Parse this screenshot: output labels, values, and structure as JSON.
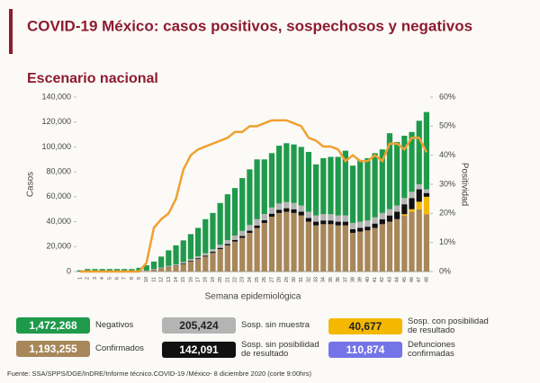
{
  "chart_data": {
    "type": "bar",
    "title": "COVID-19 México: casos positivos, sospechosos y negativos",
    "subtitle": "Escenario nacional",
    "x_label": "Semana epidemiológica",
    "y_label": "Casos",
    "y2_label": "Positividad",
    "source": "Fuente: SSA/SPPS/DGE/InDRE/Informe técnico.COVID-19 /México- 8 diciembre 2020 (corte 9:00hrs)",
    "categories": [
      "1",
      "2",
      "3",
      "4",
      "5",
      "6",
      "7",
      "8",
      "9",
      "10",
      "11",
      "12",
      "13",
      "14",
      "15",
      "16",
      "17",
      "18",
      "19",
      "20",
      "21",
      "22",
      "23",
      "24",
      "25",
      "26",
      "27",
      "28",
      "29",
      "30",
      "31",
      "32",
      "33",
      "34",
      "35",
      "36",
      "37",
      "38",
      "39",
      "40",
      "41",
      "42",
      "43",
      "44",
      "45",
      "46",
      "47",
      "48"
    ],
    "ylim": [
      0,
      140000
    ],
    "yticks": [
      0,
      {
        "value": 20000,
        "label": "20,000"
      },
      {
        "value": 40000,
        "label": "40,000"
      },
      {
        "value": 60000,
        "label": "60,000"
      },
      {
        "value": 80000,
        "label": "80,000"
      },
      {
        "value": 100000,
        "label": "100,000"
      },
      {
        "value": 120000,
        "label": "120,000"
      },
      {
        "value": 140000,
        "label": "140,000"
      }
    ],
    "y2lim": [
      0,
      60
    ],
    "y2ticks": [
      {
        "value": 0,
        "label": "0%"
      },
      {
        "value": 10,
        "label": "10%"
      },
      {
        "value": 20,
        "label": "20%"
      },
      {
        "value": 30,
        "label": "30%"
      },
      {
        "value": 40,
        "label": "40%"
      },
      {
        "value": 50,
        "label": "50%"
      },
      {
        "value": 60,
        "label": "60%"
      }
    ],
    "series": [
      {
        "name": "Confirmados",
        "total": "1,193,255",
        "color": "#a8875a",
        "values": [
          0,
          0,
          0,
          0,
          0,
          0,
          0,
          0,
          200,
          600,
          1500,
          2500,
          3500,
          4500,
          6000,
          8000,
          10000,
          12000,
          15000,
          18000,
          21000,
          24000,
          27000,
          31000,
          35000,
          39000,
          44000,
          47000,
          48000,
          47000,
          45000,
          40000,
          37000,
          38000,
          38000,
          37000,
          37000,
          31000,
          32000,
          33000,
          35000,
          38000,
          40000,
          42000,
          45000,
          48000,
          50000,
          46000
        ]
      },
      {
        "name": "Sosp. con posibilidad de resultado",
        "total": "40,677",
        "color": "#f5b800",
        "values": [
          0,
          0,
          0,
          0,
          0,
          0,
          0,
          0,
          0,
          0,
          0,
          0,
          0,
          0,
          0,
          0,
          0,
          0,
          0,
          0,
          0,
          0,
          0,
          0,
          0,
          0,
          0,
          0,
          0,
          0,
          0,
          0,
          0,
          0,
          0,
          0,
          0,
          0,
          0,
          0,
          0,
          0,
          0,
          0,
          1000,
          2000,
          6000,
          14000
        ]
      },
      {
        "name": "Sosp. sin posibilidad de resultado",
        "total": "142,091",
        "color": "#111111",
        "values": [
          0,
          0,
          0,
          0,
          0,
          0,
          0,
          0,
          0,
          0,
          100,
          200,
          300,
          400,
          500,
          600,
          700,
          800,
          900,
          1000,
          1200,
          1400,
          1600,
          1800,
          2000,
          2200,
          2400,
          2600,
          2800,
          3000,
          3000,
          3000,
          3000,
          3000,
          3000,
          3000,
          3000,
          3000,
          3000,
          3000,
          3500,
          4000,
          5000,
          6000,
          8000,
          9000,
          10000,
          3000
        ]
      },
      {
        "name": "Sosp. sin muestra",
        "total": "205,424",
        "color": "#b4b4b4",
        "values": [
          0,
          0,
          0,
          0,
          0,
          0,
          0,
          0,
          100,
          200,
          300,
          500,
          700,
          900,
          1100,
          1300,
          1500,
          1800,
          2000,
          2500,
          3000,
          3500,
          4000,
          4500,
          5000,
          5000,
          5000,
          5000,
          5000,
          5000,
          5000,
          5000,
          5000,
          5000,
          5000,
          5000,
          5000,
          5000,
          5000,
          5000,
          5000,
          5000,
          5000,
          5000,
          5000,
          5000,
          4000,
          3000
        ]
      },
      {
        "name": "Negativos",
        "total": "1,472,268",
        "color": "#1f9a4b",
        "values": [
          1000,
          2000,
          2000,
          2000,
          2000,
          2000,
          2000,
          2000,
          2700,
          4200,
          6100,
          8800,
          12500,
          15200,
          17400,
          20100,
          22800,
          27400,
          29100,
          33500,
          36800,
          38100,
          42400,
          44700,
          48000,
          43800,
          43600,
          46400,
          47200,
          47000,
          47000,
          48000,
          41000,
          45000,
          46000,
          47000,
          52000,
          46000,
          49000,
          50000,
          51500,
          51000,
          61000,
          51000,
          50000,
          48000,
          51000,
          62000
        ]
      },
      {
        "type": "line",
        "axis": "y2",
        "color": "#f0a030",
        "values": [
          0,
          0,
          0,
          0,
          0,
          0,
          0,
          0,
          0,
          3,
          15,
          18,
          20,
          25,
          35,
          40,
          42,
          43,
          44,
          45,
          46,
          48,
          48,
          50,
          50,
          51,
          52,
          52,
          52,
          51,
          50,
          46,
          45,
          43,
          43,
          42,
          38,
          40,
          38,
          38,
          40,
          38,
          44,
          44,
          42,
          46,
          46,
          41
        ]
      }
    ],
    "extra_legend": [
      {
        "name": "Defunciones confirmadas",
        "total": "110,874",
        "color": "#7474e8"
      }
    ]
  }
}
